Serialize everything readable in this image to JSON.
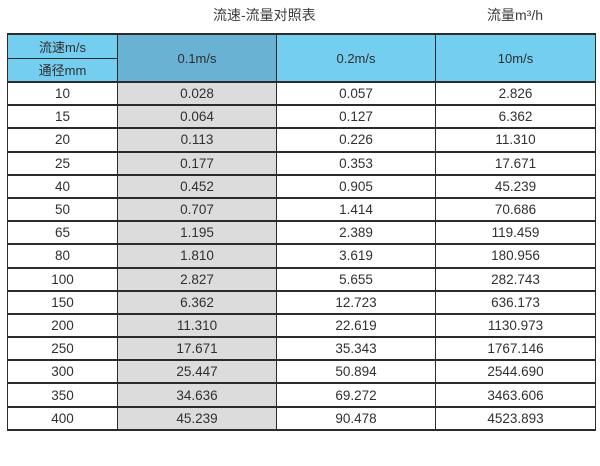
{
  "header": {
    "title": "流速-流量对照表",
    "unit_label": "流量m³/h"
  },
  "chart_data": {
    "type": "table",
    "title": "流速-流量对照表",
    "unit": "流量m³/h",
    "corner_top": "流速m/s",
    "corner_bottom": "通径mm",
    "speed_columns": [
      "0.1m/s",
      "0.2m/s",
      "10m/s"
    ],
    "columns": [
      "通径mm",
      "0.1m/s",
      "0.2m/s",
      "10m/s"
    ],
    "rows": [
      [
        "10",
        "0.028",
        "0.057",
        "2.826"
      ],
      [
        "15",
        "0.064",
        "0.127",
        "6.362"
      ],
      [
        "20",
        "0.113",
        "0.226",
        "11.310"
      ],
      [
        "25",
        "0.177",
        "0.353",
        "17.671"
      ],
      [
        "40",
        "0.452",
        "0.905",
        "45.239"
      ],
      [
        "50",
        "0.707",
        "1.414",
        "70.686"
      ],
      [
        "65",
        "1.195",
        "2.389",
        "119.459"
      ],
      [
        "80",
        "1.810",
        "3.619",
        "180.956"
      ],
      [
        "100",
        "2.827",
        "5.655",
        "282.743"
      ],
      [
        "150",
        "6.362",
        "12.723",
        "636.173"
      ],
      [
        "200",
        "11.310",
        "22.619",
        "1130.973"
      ],
      [
        "250",
        "17.671",
        "35.343",
        "1767.146"
      ],
      [
        "300",
        "25.447",
        "50.894",
        "2544.690"
      ],
      [
        "350",
        "34.636",
        "69.272",
        "3463.606"
      ],
      [
        "400",
        "45.239",
        "90.478",
        "4523.893"
      ]
    ],
    "layout": {
      "highlighted_column": "0.1m/s",
      "grid": true
    }
  },
  "colors": {
    "header_blue": "#74cef0",
    "header_dark_blue": "#69b2d4",
    "gray_column": "#dcdcdc",
    "border": "#2b2b2b"
  }
}
